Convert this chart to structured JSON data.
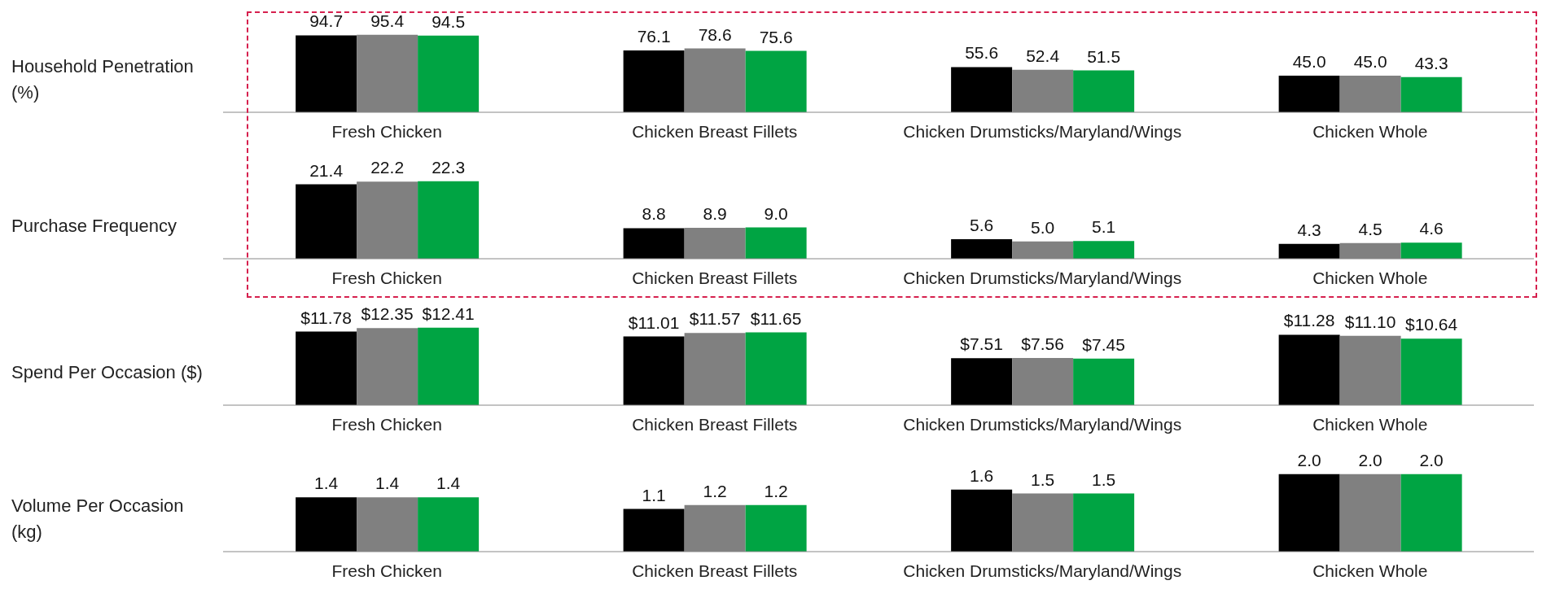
{
  "chart_data": [
    {
      "type": "bar",
      "ylabel": "Household Penetration (%)",
      "categories": [
        "Fresh Chicken",
        "Chicken Breast Fillets",
        "Chicken Drumsticks/Maryland/Wings",
        "Chicken Whole"
      ],
      "series": [
        {
          "color": "#000000",
          "values": [
            94.7,
            76.1,
            55.6,
            45.0
          ],
          "value_labels": [
            "94.7",
            "76.1",
            "55.6",
            "45.0"
          ]
        },
        {
          "color": "#808080",
          "values": [
            95.4,
            78.6,
            52.4,
            45.0
          ],
          "value_labels": [
            "95.4",
            "78.6",
            "52.4",
            "45.0"
          ]
        },
        {
          "color": "#00a443",
          "values": [
            94.5,
            75.6,
            51.5,
            43.3
          ],
          "value_labels": [
            "94.5",
            "75.6",
            "51.5",
            "43.3"
          ]
        }
      ]
    },
    {
      "type": "bar",
      "ylabel": "Purchase Frequency",
      "categories": [
        "Fresh Chicken",
        "Chicken Breast Fillets",
        "Chicken Drumsticks/Maryland/Wings",
        "Chicken Whole"
      ],
      "series": [
        {
          "color": "#000000",
          "values": [
            21.4,
            8.8,
            5.6,
            4.3
          ],
          "value_labels": [
            "21.4",
            "8.8",
            "5.6",
            "4.3"
          ]
        },
        {
          "color": "#808080",
          "values": [
            22.2,
            8.9,
            5.0,
            4.5
          ],
          "value_labels": [
            "22.2",
            "8.9",
            "5.0",
            "4.5"
          ]
        },
        {
          "color": "#00a443",
          "values": [
            22.3,
            9.0,
            5.1,
            4.6
          ],
          "value_labels": [
            "22.3",
            "9.0",
            "5.1",
            "4.6"
          ]
        }
      ]
    },
    {
      "type": "bar",
      "ylabel": "Spend Per Occasion ($)",
      "categories": [
        "Fresh Chicken",
        "Chicken Breast Fillets",
        "Chicken Drumsticks/Maryland/Wings",
        "Chicken Whole"
      ],
      "series": [
        {
          "color": "#000000",
          "values": [
            11.78,
            11.01,
            7.51,
            11.28
          ],
          "value_labels": [
            "$11.78",
            "$11.01",
            "$7.51",
            "$11.28"
          ]
        },
        {
          "color": "#808080",
          "values": [
            12.35,
            11.57,
            7.56,
            11.1
          ],
          "value_labels": [
            "$12.35",
            "$11.57",
            "$7.56",
            "$11.10"
          ]
        },
        {
          "color": "#00a443",
          "values": [
            12.41,
            11.65,
            7.45,
            10.64
          ],
          "value_labels": [
            "$12.41",
            "$11.65",
            "$7.45",
            "$10.64"
          ]
        }
      ]
    },
    {
      "type": "bar",
      "ylabel": "Volume Per Occasion (kg)",
      "categories": [
        "Fresh Chicken",
        "Chicken Breast Fillets",
        "Chicken Drumsticks/Maryland/Wings",
        "Chicken Whole"
      ],
      "series": [
        {
          "color": "#000000",
          "values": [
            1.4,
            1.1,
            1.6,
            2.0
          ],
          "value_labels": [
            "1.4",
            "1.1",
            "1.6",
            "2.0"
          ]
        },
        {
          "color": "#808080",
          "values": [
            1.4,
            1.2,
            1.5,
            2.0
          ],
          "value_labels": [
            "1.4",
            "1.2",
            "1.5",
            "2.0"
          ]
        },
        {
          "color": "#00a443",
          "values": [
            1.4,
            1.2,
            1.5,
            2.0
          ],
          "value_labels": [
            "1.4",
            "1.2",
            "1.5",
            "2.0"
          ]
        }
      ]
    }
  ]
}
